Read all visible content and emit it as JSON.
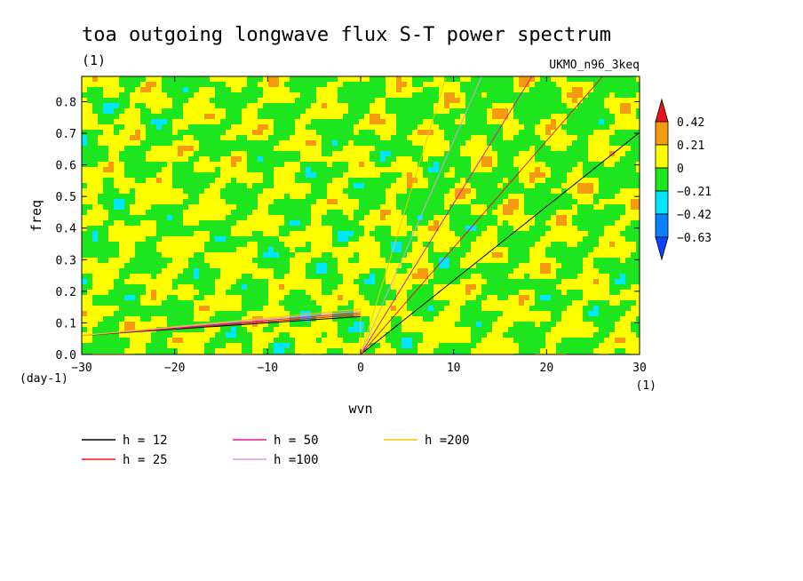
{
  "title": "toa outgoing longwave flux S-T power spectrum",
  "subtitle": "(1)",
  "model_label": "UKMO_n96_3keq",
  "chart_data": {
    "type": "heatmap",
    "title": "toa outgoing longwave flux S-T power spectrum",
    "subtitle": "(1)",
    "xlabel": "wvn",
    "x_unit": "(1)",
    "ylabel": "freq",
    "y_unit": "(day-1)",
    "xlim": [
      -30,
      30
    ],
    "ylim": [
      0,
      0.88
    ],
    "xticks": [
      -30,
      -20,
      -10,
      0,
      10,
      20,
      30
    ],
    "yticks": [
      0.0,
      0.1,
      0.2,
      0.3,
      0.4,
      0.5,
      0.6,
      0.7,
      0.8
    ],
    "colorbar": {
      "levels": [
        "0.42",
        "0.21",
        "0",
        "-0.21",
        "-0.42",
        "-0.63"
      ],
      "colors": [
        "#e8141c",
        "#f59b0f",
        "#ffff00",
        "#1ee61e",
        "#00e6ff",
        "#0a82ff",
        "#0a46ff"
      ]
    },
    "dispersion_curves": [
      {
        "name": "h = 12",
        "h": 12,
        "color": "#000000"
      },
      {
        "name": "h = 25",
        "h": 25,
        "color": "#e8141c"
      },
      {
        "name": "h = 50",
        "h": 50,
        "color": "#e6139b"
      },
      {
        "name": "h =100",
        "h": 100,
        "color": "#d79be6"
      },
      {
        "name": "h =200",
        "h": 200,
        "color": "#f0c800"
      }
    ]
  }
}
